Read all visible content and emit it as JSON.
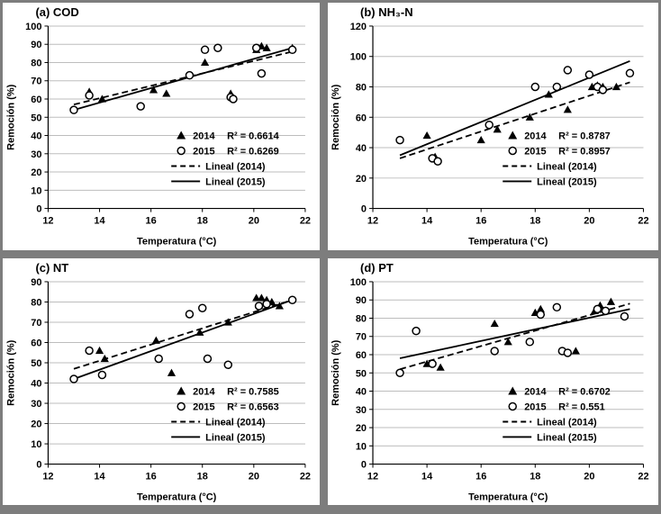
{
  "page": {
    "description": "Four scatter plots of removal percentage versus temperature for 2014 and 2015 with linear trend lines"
  },
  "chart_data": [
    {
      "type": "scatter",
      "title": "(a) COD",
      "xlabel": "Temperatura (°C)",
      "ylabel": "Remoción (%)",
      "xlim": [
        12,
        22
      ],
      "xstep": 2,
      "ylim": [
        0,
        100
      ],
      "ystep": 10,
      "grid": "horizontal",
      "legend_position": "lower-right",
      "series": [
        {
          "name": "2014",
          "marker": "triangle",
          "r2": "R² = 0.6614",
          "points": [
            [
              13.6,
              64
            ],
            [
              14.1,
              60
            ],
            [
              16.1,
              65
            ],
            [
              16.6,
              63
            ],
            [
              18.1,
              80
            ],
            [
              19.1,
              63
            ],
            [
              20.1,
              87
            ],
            [
              20.3,
              89
            ],
            [
              20.5,
              88
            ],
            [
              21.5,
              88
            ]
          ]
        },
        {
          "name": "2015",
          "marker": "circle",
          "r2": "R² = 0.6269",
          "points": [
            [
              13.0,
              54
            ],
            [
              13.6,
              62
            ],
            [
              15.6,
              56
            ],
            [
              17.5,
              73
            ],
            [
              18.1,
              87
            ],
            [
              18.6,
              88
            ],
            [
              19.1,
              61
            ],
            [
              19.2,
              60
            ],
            [
              20.1,
              88
            ],
            [
              20.3,
              74
            ],
            [
              21.5,
              87
            ]
          ]
        }
      ],
      "trends": [
        {
          "name": "Lineal (2014)",
          "style": "dashed",
          "points": [
            [
              13,
              57
            ],
            [
              21.5,
              86
            ]
          ]
        },
        {
          "name": "Lineal (2015)",
          "style": "solid",
          "points": [
            [
              13,
              54
            ],
            [
              21.5,
              88
            ]
          ]
        }
      ]
    },
    {
      "type": "scatter",
      "title": "(b) NH₃-N",
      "xlabel": "Temperatura (°C)",
      "ylabel": "Remoción (%)",
      "xlim": [
        12,
        22
      ],
      "xstep": 2,
      "ylim": [
        0,
        120
      ],
      "ystep": 20,
      "grid": "horizontal",
      "legend_position": "lower-right",
      "series": [
        {
          "name": "2014",
          "marker": "triangle",
          "r2": "R² = 0.8787",
          "points": [
            [
              14.0,
              48
            ],
            [
              14.3,
              34
            ],
            [
              16.0,
              45
            ],
            [
              16.6,
              52
            ],
            [
              17.8,
              60
            ],
            [
              18.5,
              75
            ],
            [
              19.2,
              65
            ],
            [
              20.1,
              80
            ],
            [
              20.3,
              81
            ],
            [
              20.5,
              80
            ],
            [
              21.0,
              80
            ]
          ]
        },
        {
          "name": "2015",
          "marker": "circle",
          "r2": "R² = 0.8957",
          "points": [
            [
              13.0,
              45
            ],
            [
              14.2,
              33
            ],
            [
              14.4,
              31
            ],
            [
              16.3,
              55
            ],
            [
              18.0,
              80
            ],
            [
              18.8,
              80
            ],
            [
              19.2,
              91
            ],
            [
              20.0,
              88
            ],
            [
              20.3,
              80
            ],
            [
              20.5,
              78
            ],
            [
              21.5,
              89
            ]
          ]
        }
      ],
      "trends": [
        {
          "name": "Lineal (2014)",
          "style": "dashed",
          "points": [
            [
              13,
              33
            ],
            [
              21.5,
              83
            ]
          ]
        },
        {
          "name": "Lineal (2015)",
          "style": "solid",
          "points": [
            [
              13,
              35
            ],
            [
              21.5,
              97
            ]
          ]
        }
      ]
    },
    {
      "type": "scatter",
      "title": "(c) NT",
      "xlabel": "Temperatura (°C)",
      "ylabel": "Remoción (%)",
      "xlim": [
        12,
        22
      ],
      "xstep": 2,
      "ylim": [
        0,
        90
      ],
      "ystep": 10,
      "grid": "horizontal",
      "legend_position": "lower-right",
      "series": [
        {
          "name": "2014",
          "marker": "triangle",
          "r2": "R² = 0.7585",
          "points": [
            [
              14.0,
              56
            ],
            [
              14.2,
              52
            ],
            [
              16.2,
              61
            ],
            [
              16.8,
              45
            ],
            [
              17.9,
              65
            ],
            [
              19.0,
              70
            ],
            [
              20.1,
              82
            ],
            [
              20.3,
              82
            ],
            [
              20.5,
              81
            ],
            [
              20.7,
              80
            ],
            [
              21.0,
              78
            ]
          ]
        },
        {
          "name": "2015",
          "marker": "circle",
          "r2": "R² = 0.6563",
          "points": [
            [
              13.0,
              42
            ],
            [
              13.6,
              56
            ],
            [
              14.1,
              44
            ],
            [
              16.3,
              52
            ],
            [
              17.5,
              74
            ],
            [
              18.0,
              77
            ],
            [
              18.2,
              52
            ],
            [
              19.0,
              49
            ],
            [
              20.2,
              78
            ],
            [
              20.5,
              79
            ],
            [
              21.5,
              81
            ]
          ]
        }
      ],
      "trends": [
        {
          "name": "Lineal (2014)",
          "style": "dashed",
          "points": [
            [
              13,
              47
            ],
            [
              21.5,
              81
            ]
          ]
        },
        {
          "name": "Lineal (2015)",
          "style": "solid",
          "points": [
            [
              13,
              42
            ],
            [
              21.5,
              81
            ]
          ]
        }
      ]
    },
    {
      "type": "scatter",
      "title": "(d) PT",
      "xlabel": "Temperatura (°C)",
      "ylabel": "Remoción (%)",
      "xlim": [
        12,
        22
      ],
      "xstep": 2,
      "ylim": [
        0,
        100
      ],
      "ystep": 10,
      "grid": "horizontal",
      "legend_position": "lower-right",
      "series": [
        {
          "name": "2014",
          "marker": "triangle",
          "r2": "R² = 0.6702",
          "points": [
            [
              14.0,
              55
            ],
            [
              14.5,
              53
            ],
            [
              16.5,
              77
            ],
            [
              17.0,
              67
            ],
            [
              18.0,
              83
            ],
            [
              18.2,
              85
            ],
            [
              19.5,
              62
            ],
            [
              20.2,
              84
            ],
            [
              20.4,
              87
            ],
            [
              20.8,
              89
            ]
          ]
        },
        {
          "name": "2015",
          "marker": "circle",
          "r2": "R² = 0.551",
          "points": [
            [
              13.0,
              50
            ],
            [
              13.6,
              73
            ],
            [
              14.2,
              55
            ],
            [
              16.5,
              62
            ],
            [
              17.8,
              67
            ],
            [
              18.2,
              82
            ],
            [
              18.8,
              86
            ],
            [
              19.0,
              62
            ],
            [
              19.2,
              61
            ],
            [
              20.3,
              85
            ],
            [
              20.6,
              84
            ],
            [
              21.3,
              81
            ]
          ]
        }
      ],
      "trends": [
        {
          "name": "Lineal (2014)",
          "style": "dashed",
          "points": [
            [
              13,
              52
            ],
            [
              21.5,
              88
            ]
          ]
        },
        {
          "name": "Lineal (2015)",
          "style": "solid",
          "points": [
            [
              13,
              58
            ],
            [
              21.5,
              85
            ]
          ]
        }
      ]
    }
  ]
}
